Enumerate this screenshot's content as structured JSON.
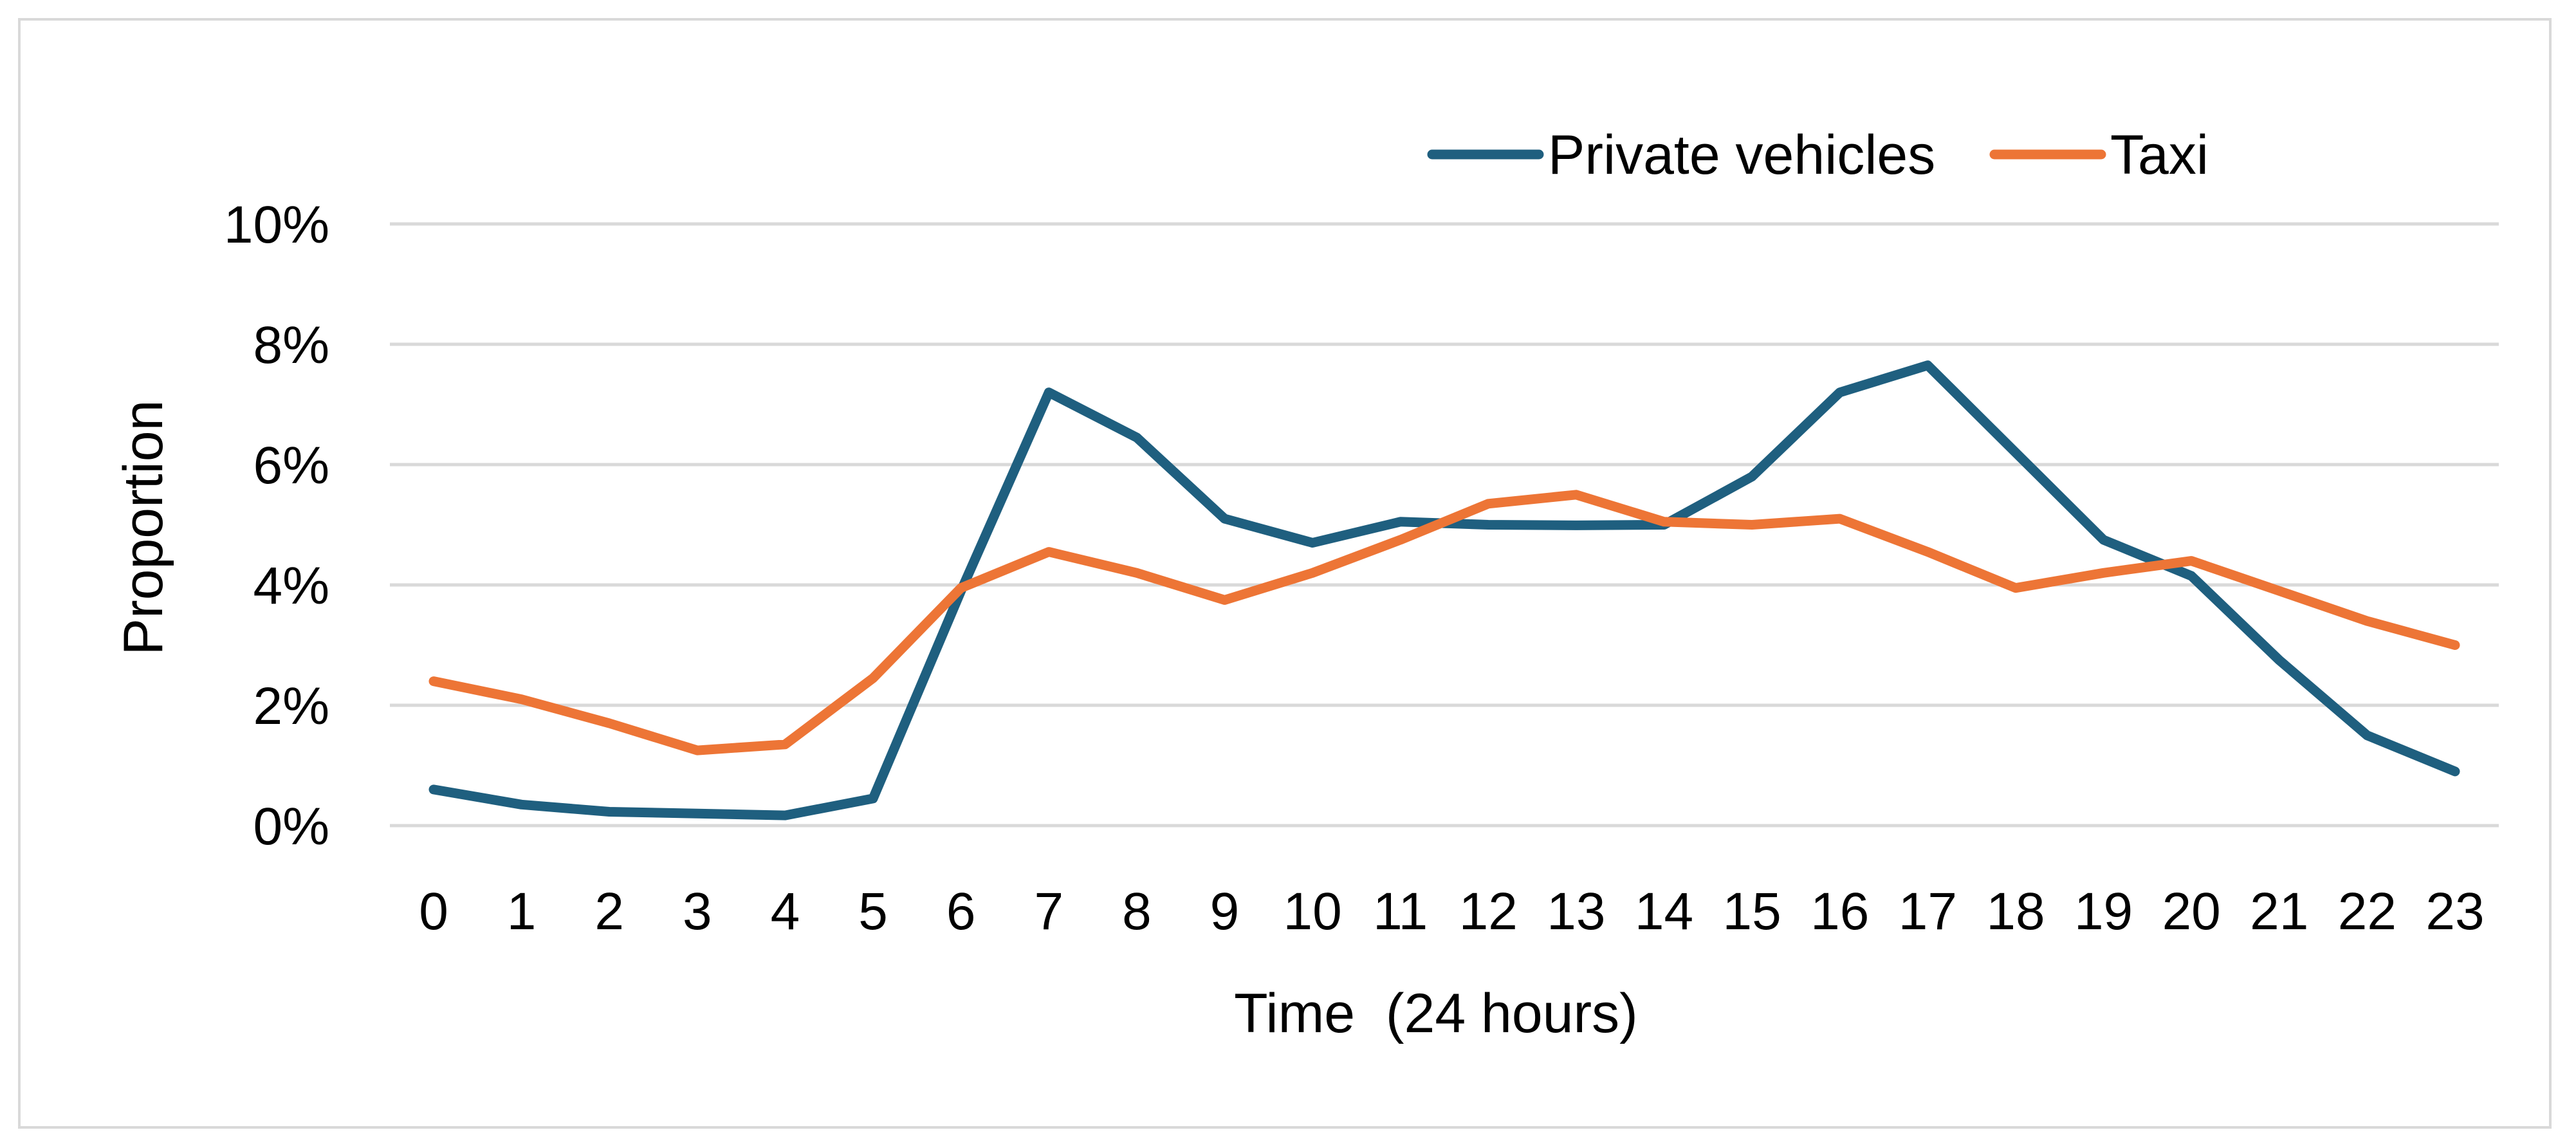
{
  "chart_data": {
    "type": "line",
    "title": "",
    "xlabel": "Time  (24 hours)",
    "ylabel": "Proportion",
    "categories": [
      "0",
      "1",
      "2",
      "3",
      "4",
      "5",
      "6",
      "7",
      "8",
      "9",
      "10",
      "11",
      "12",
      "13",
      "14",
      "15",
      "16",
      "17",
      "18",
      "19",
      "20",
      "21",
      "22",
      "23"
    ],
    "y_ticks": [
      "0%",
      "2%",
      "4%",
      "6%",
      "8%",
      "10%"
    ],
    "ylim": [
      0,
      10
    ],
    "y_unit": "%",
    "grid": "horizontal",
    "legend_position": "top-right",
    "series": [
      {
        "name": "Private vehicles",
        "color": "#1f5f7f",
        "values": [
          0.6,
          0.35,
          0.23,
          0.2,
          0.17,
          0.45,
          3.9,
          7.2,
          6.45,
          5.1,
          4.7,
          5.05,
          5.0,
          4.99,
          5.0,
          5.8,
          7.2,
          7.65,
          6.2,
          4.75,
          4.15,
          2.75,
          1.5,
          0.9
        ]
      },
      {
        "name": "Taxi",
        "color": "#ed7536",
        "values": [
          2.4,
          2.1,
          1.7,
          1.25,
          1.35,
          2.45,
          3.95,
          4.55,
          4.2,
          3.75,
          4.2,
          4.75,
          5.35,
          5.5,
          5.05,
          5.0,
          5.1,
          4.55,
          3.95,
          4.2,
          4.4,
          3.9,
          3.4,
          3.0
        ]
      }
    ]
  }
}
